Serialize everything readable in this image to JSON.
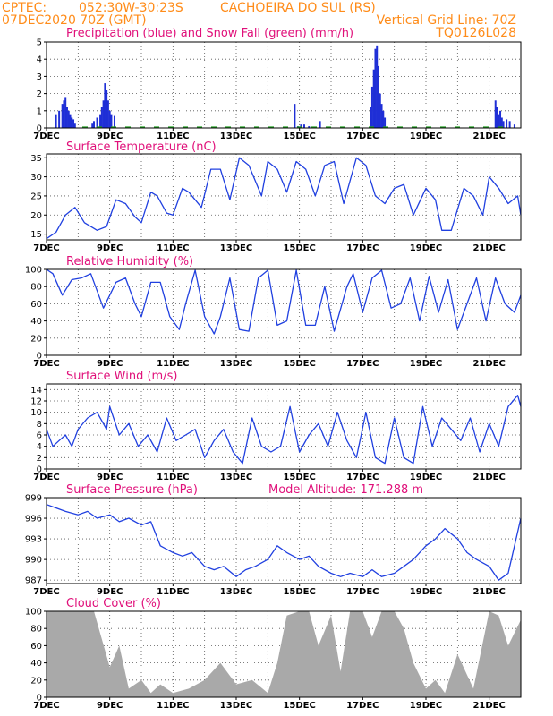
{
  "header": {
    "source": "CPTEC:",
    "coords": "052:30W-30:23S",
    "location": "CACHOEIRA DO SUL (RS)",
    "date": "07DEC2020 70Z (GMT)",
    "grid_note": "Vertical Grid Line: 70Z",
    "model_code": "TQ0126L028"
  },
  "colors": {
    "header": "#ff8c1a",
    "titles": "#e0107a",
    "precip": "#1f2fd6",
    "snow": "#22a022",
    "line": "#2040e0",
    "cloud": "#a9a9a9"
  },
  "x_axis": {
    "labels": [
      "7DEC",
      "9DEC",
      "11DEC",
      "13DEC",
      "15DEC",
      "17DEC",
      "19DEC",
      "21DEC"
    ],
    "day_start": 7,
    "day_end": 22
  },
  "chart_data": [
    {
      "type": "bar",
      "title": "Precipitation (blue) and Snow Fall (green) (mm/h)",
      "ylim": [
        0,
        5
      ],
      "yticks": [
        0,
        1,
        2,
        3,
        4,
        5
      ],
      "series": [
        {
          "name": "Precipitation",
          "color": "#1f2fd6",
          "x": [
            7.3,
            7.4,
            7.5,
            7.55,
            7.6,
            7.65,
            7.7,
            7.75,
            7.8,
            7.85,
            7.9,
            8.45,
            8.5,
            8.6,
            8.7,
            8.75,
            8.8,
            8.85,
            8.9,
            8.95,
            9.0,
            9.05,
            9.15,
            14.85,
            14.95,
            15.05,
            15.15,
            15.3,
            15.65,
            17.25,
            17.3,
            17.35,
            17.4,
            17.45,
            17.5,
            17.55,
            17.6,
            17.65,
            17.7,
            21.2,
            21.25,
            21.3,
            21.35,
            21.4,
            21.45,
            21.55,
            21.65,
            21.8
          ],
          "values": [
            0.8,
            1.0,
            1.4,
            1.6,
            1.8,
            1.2,
            1.0,
            0.8,
            0.6,
            0.5,
            0.3,
            0.3,
            0.4,
            0.6,
            0.8,
            1.2,
            1.6,
            2.6,
            2.2,
            1.6,
            1.0,
            0.8,
            0.7,
            1.4,
            0.1,
            0.2,
            0.2,
            0.1,
            0.4,
            1.2,
            2.4,
            3.4,
            4.6,
            4.8,
            3.6,
            2.0,
            1.4,
            1.0,
            0.6,
            1.6,
            1.2,
            0.8,
            1.0,
            0.6,
            0.4,
            0.5,
            0.4,
            0.2
          ]
        }
      ]
    },
    {
      "type": "line",
      "title": "Surface Temperature (nC)",
      "ylim": [
        13.5,
        36
      ],
      "yticks": [
        15,
        20,
        25,
        30,
        35
      ],
      "x": [
        7.0,
        7.3,
        7.6,
        7.9,
        8.2,
        8.6,
        8.9,
        9.2,
        9.5,
        9.8,
        10.0,
        10.3,
        10.5,
        10.8,
        11.0,
        11.3,
        11.5,
        11.9,
        12.2,
        12.5,
        12.8,
        13.1,
        13.4,
        13.8,
        14.0,
        14.3,
        14.6,
        14.9,
        15.2,
        15.5,
        15.8,
        16.1,
        16.4,
        16.8,
        17.1,
        17.4,
        17.7,
        18.0,
        18.3,
        18.6,
        19.0,
        19.3,
        19.5,
        19.8,
        20.2,
        20.5,
        20.8,
        21.0,
        21.3,
        21.6,
        21.9,
        22.0
      ],
      "values": [
        13.8,
        15.5,
        20,
        22,
        18,
        16,
        17,
        24,
        23,
        19.5,
        18,
        26,
        25,
        20.5,
        20,
        27,
        26,
        22,
        32,
        32,
        24,
        35,
        33,
        25,
        34,
        32,
        26,
        34,
        32,
        25,
        33,
        34,
        23,
        35,
        33,
        25,
        23,
        27,
        28,
        20,
        27,
        24,
        16,
        16,
        27,
        25,
        20,
        30,
        27,
        23,
        25,
        20
      ]
    },
    {
      "type": "line",
      "title": "Relative Humidity (%)",
      "ylim": [
        0,
        100
      ],
      "yticks": [
        0,
        20,
        40,
        60,
        80,
        100
      ],
      "x": [
        7.0,
        7.2,
        7.5,
        7.8,
        8.1,
        8.4,
        8.8,
        9.0,
        9.2,
        9.5,
        9.8,
        10.0,
        10.3,
        10.6,
        10.9,
        11.2,
        11.4,
        11.7,
        12.0,
        12.3,
        12.5,
        12.8,
        13.1,
        13.4,
        13.7,
        14.0,
        14.3,
        14.6,
        14.9,
        15.2,
        15.5,
        15.8,
        16.1,
        16.5,
        16.7,
        17.0,
        17.3,
        17.6,
        17.9,
        18.2,
        18.5,
        18.8,
        19.1,
        19.4,
        19.7,
        20.0,
        20.3,
        20.6,
        20.9,
        21.2,
        21.5,
        21.8,
        22.0
      ],
      "values": [
        100,
        95,
        70,
        88,
        90,
        95,
        55,
        70,
        85,
        90,
        60,
        45,
        85,
        85,
        45,
        30,
        60,
        99,
        45,
        25,
        45,
        90,
        30,
        28,
        90,
        99,
        35,
        40,
        99,
        35,
        35,
        80,
        28,
        80,
        95,
        50,
        90,
        99,
        55,
        60,
        90,
        40,
        92,
        50,
        88,
        30,
        60,
        90,
        40,
        90,
        60,
        50,
        70
      ]
    },
    {
      "type": "line",
      "title": "Surface Wind (m/s)",
      "ylim": [
        0,
        15
      ],
      "yticks": [
        0,
        2,
        4,
        6,
        8,
        10,
        12,
        14
      ],
      "x": [
        7.0,
        7.2,
        7.4,
        7.6,
        7.8,
        8.0,
        8.3,
        8.6,
        8.9,
        9.0,
        9.3,
        9.6,
        9.9,
        10.2,
        10.5,
        10.8,
        11.1,
        11.4,
        11.7,
        12.0,
        12.3,
        12.6,
        12.9,
        13.2,
        13.5,
        13.8,
        14.1,
        14.4,
        14.7,
        15.0,
        15.3,
        15.6,
        15.9,
        16.2,
        16.5,
        16.8,
        17.1,
        17.4,
        17.7,
        18.0,
        18.3,
        18.6,
        18.9,
        19.2,
        19.5,
        19.8,
        20.1,
        20.4,
        20.7,
        21.0,
        21.3,
        21.6,
        21.9,
        22.0
      ],
      "values": [
        7,
        4,
        5,
        6,
        4,
        7,
        9,
        10,
        7,
        11,
        6,
        8,
        4,
        6,
        3,
        9,
        5,
        6,
        7,
        2,
        5,
        7,
        3,
        1,
        9,
        4,
        3,
        4,
        11,
        3,
        6,
        8,
        4,
        10,
        5,
        2,
        10,
        2,
        1,
        9,
        2,
        1,
        11,
        4,
        9,
        7,
        5,
        9,
        3,
        8,
        4,
        11,
        13,
        11
      ]
    },
    {
      "type": "line",
      "title": "Surface Pressure (hPa)",
      "annotation": "Model Altitude: 171.288 m",
      "ylim": [
        986.5,
        999
      ],
      "yticks": [
        987,
        990,
        993,
        996,
        999
      ],
      "x": [
        7.0,
        7.3,
        7.6,
        8.0,
        8.3,
        8.6,
        9.0,
        9.3,
        9.6,
        10.0,
        10.3,
        10.6,
        11.0,
        11.3,
        11.6,
        12.0,
        12.3,
        12.6,
        13.0,
        13.3,
        13.6,
        14.0,
        14.3,
        14.6,
        15.0,
        15.3,
        15.6,
        16.0,
        16.3,
        16.6,
        17.0,
        17.3,
        17.6,
        18.0,
        18.3,
        18.6,
        19.0,
        19.3,
        19.6,
        20.0,
        20.3,
        20.6,
        21.0,
        21.3,
        21.6,
        22.0
      ],
      "values": [
        998,
        997.5,
        997,
        996.5,
        997,
        996,
        996.5,
        995.5,
        996,
        995,
        995.5,
        992,
        991,
        990.5,
        991,
        989,
        988.5,
        989,
        987.5,
        988.5,
        989,
        990,
        992,
        991,
        990,
        990.5,
        989,
        988,
        987.5,
        988,
        987.5,
        988.5,
        987.5,
        988,
        989,
        990,
        992,
        993,
        994.5,
        993,
        991,
        990,
        989,
        987,
        988,
        996
      ]
    },
    {
      "type": "area",
      "title": "Cloud Cover (%)",
      "ylim": [
        0,
        100
      ],
      "yticks": [
        0,
        20,
        40,
        60,
        80,
        100
      ],
      "x": [
        7.0,
        7.5,
        8.0,
        8.5,
        9.0,
        9.3,
        9.6,
        10.0,
        10.3,
        10.6,
        11.0,
        11.5,
        12.0,
        12.5,
        13.0,
        13.5,
        14.0,
        14.3,
        14.6,
        15.0,
        15.3,
        15.6,
        16.0,
        16.3,
        16.6,
        17.0,
        17.3,
        17.6,
        18.0,
        18.3,
        18.6,
        19.0,
        19.3,
        19.6,
        20.0,
        20.5,
        21.0,
        21.3,
        21.6,
        22.0
      ],
      "values": [
        100,
        100,
        100,
        100,
        35,
        60,
        10,
        20,
        5,
        15,
        5,
        10,
        20,
        40,
        15,
        20,
        5,
        40,
        95,
        100,
        100,
        60,
        95,
        30,
        100,
        100,
        70,
        100,
        100,
        80,
        40,
        10,
        20,
        5,
        50,
        10,
        100,
        95,
        60,
        90
      ]
    }
  ]
}
